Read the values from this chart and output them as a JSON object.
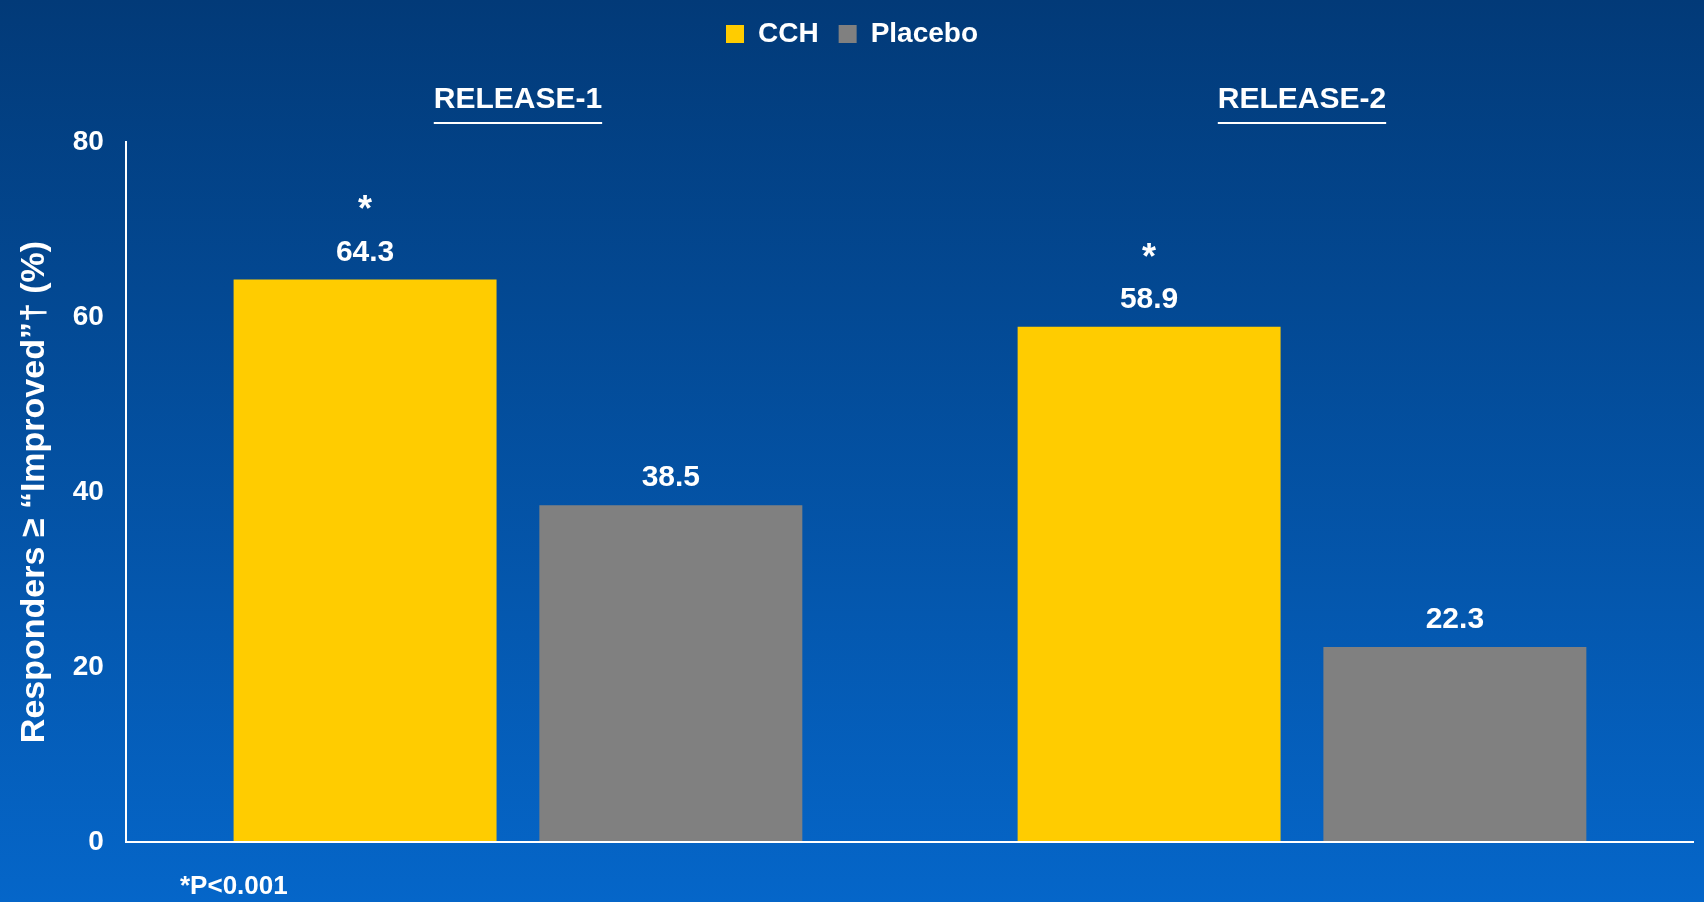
{
  "chart_data": {
    "type": "bar",
    "categories": [
      "RELEASE-1",
      "RELEASE-2"
    ],
    "series": [
      {
        "name": "CCH",
        "color": "#ffcc00",
        "values": [
          64.3,
          58.9
        ]
      },
      {
        "name": "Placebo",
        "color": "#808080",
        "values": [
          38.5,
          22.3
        ]
      }
    ],
    "ylabel": "Responders ≥ “Improved”† (%)",
    "ylim": [
      0,
      80
    ],
    "yticks": [
      0,
      20,
      40,
      60,
      80
    ],
    "data_labels": true,
    "legend": "top",
    "grid": false,
    "annotations": [
      "*",
      "*",
      "*P<0.001"
    ]
  }
}
